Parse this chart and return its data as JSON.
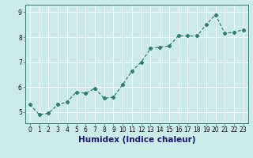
{
  "x": [
    0,
    1,
    2,
    3,
    4,
    5,
    6,
    7,
    8,
    9,
    10,
    11,
    12,
    13,
    14,
    15,
    16,
    17,
    18,
    19,
    20,
    21,
    22,
    23
  ],
  "y": [
    5.3,
    4.9,
    4.95,
    5.3,
    5.4,
    5.8,
    5.75,
    5.95,
    5.55,
    5.6,
    6.1,
    6.65,
    7.0,
    7.55,
    7.6,
    7.65,
    8.05,
    8.05,
    8.05,
    8.5,
    8.9,
    8.15,
    8.2,
    8.3
  ],
  "line_color": "#2e7d6e",
  "marker": "D",
  "marker_size": 2.2,
  "linewidth": 0.9,
  "xlabel": "Humidex (Indice chaleur)",
  "xlim": [
    -0.5,
    23.5
  ],
  "ylim": [
    4.55,
    9.3
  ],
  "yticks": [
    5,
    6,
    7,
    8,
    9
  ],
  "xticks": [
    0,
    1,
    2,
    3,
    4,
    5,
    6,
    7,
    8,
    9,
    10,
    11,
    12,
    13,
    14,
    15,
    16,
    17,
    18,
    19,
    20,
    21,
    22,
    23
  ],
  "bg_color": "#cceae7",
  "grid_color": "#ffffff",
  "tick_label_fontsize": 5.5,
  "xlabel_fontsize": 7.5,
  "spine_color": "#2e7d6e",
  "xlabel_color": "#1a1a6e"
}
